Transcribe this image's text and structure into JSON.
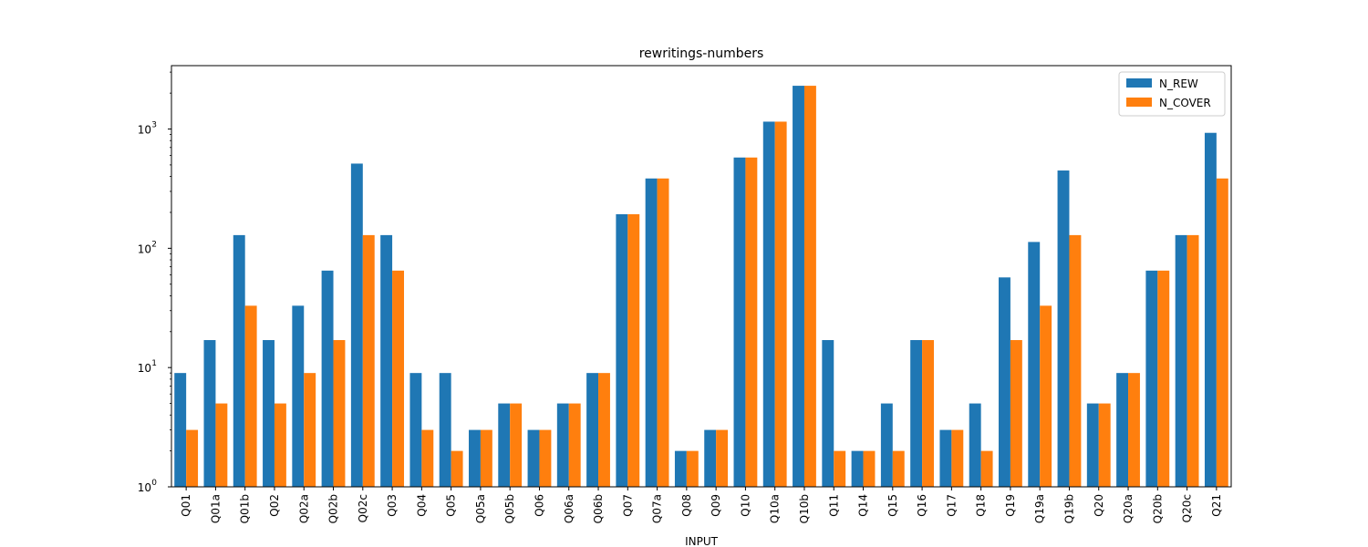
{
  "chart_data": {
    "type": "bar",
    "scale": "log",
    "title": "rewritings-numbers",
    "xlabel": "INPUT",
    "ylabel": "",
    "ylim": [
      1,
      3400
    ],
    "yticks": [
      {
        "value": 1,
        "base": "10",
        "exp": "0"
      },
      {
        "value": 10,
        "base": "10",
        "exp": "1"
      },
      {
        "value": 100,
        "base": "10",
        "exp": "2"
      },
      {
        "value": 1000,
        "base": "10",
        "exp": "3"
      }
    ],
    "legend_position": "top-right",
    "categories": [
      "Q01",
      "Q01a",
      "Q01b",
      "Q02",
      "Q02a",
      "Q02b",
      "Q02c",
      "Q03",
      "Q04",
      "Q05",
      "Q05a",
      "Q05b",
      "Q06",
      "Q06a",
      "Q06b",
      "Q07",
      "Q07a",
      "Q08",
      "Q09",
      "Q10",
      "Q10a",
      "Q10b",
      "Q11",
      "Q14",
      "Q15",
      "Q16",
      "Q17",
      "Q18",
      "Q19",
      "Q19a",
      "Q19b",
      "Q20",
      "Q20a",
      "Q20b",
      "Q20c",
      "Q21"
    ],
    "series": [
      {
        "name": "N_REW",
        "color": "#1f77b4",
        "values": [
          9,
          17,
          129,
          17,
          33,
          65,
          513,
          129,
          9,
          9,
          3,
          5,
          3,
          5,
          9,
          193,
          385,
          2,
          3,
          577,
          1153,
          2305,
          17,
          2,
          5,
          17,
          3,
          5,
          57,
          113,
          449,
          5,
          9,
          65,
          129,
          929
        ]
      },
      {
        "name": "N_COVER",
        "color": "#ff7f0e",
        "values": [
          3,
          5,
          33,
          5,
          9,
          17,
          129,
          65,
          3,
          2,
          3,
          5,
          3,
          5,
          9,
          193,
          385,
          2,
          3,
          577,
          1153,
          2305,
          2,
          2,
          2,
          17,
          3,
          2,
          17,
          33,
          129,
          5,
          9,
          65,
          129,
          385
        ]
      }
    ]
  }
}
